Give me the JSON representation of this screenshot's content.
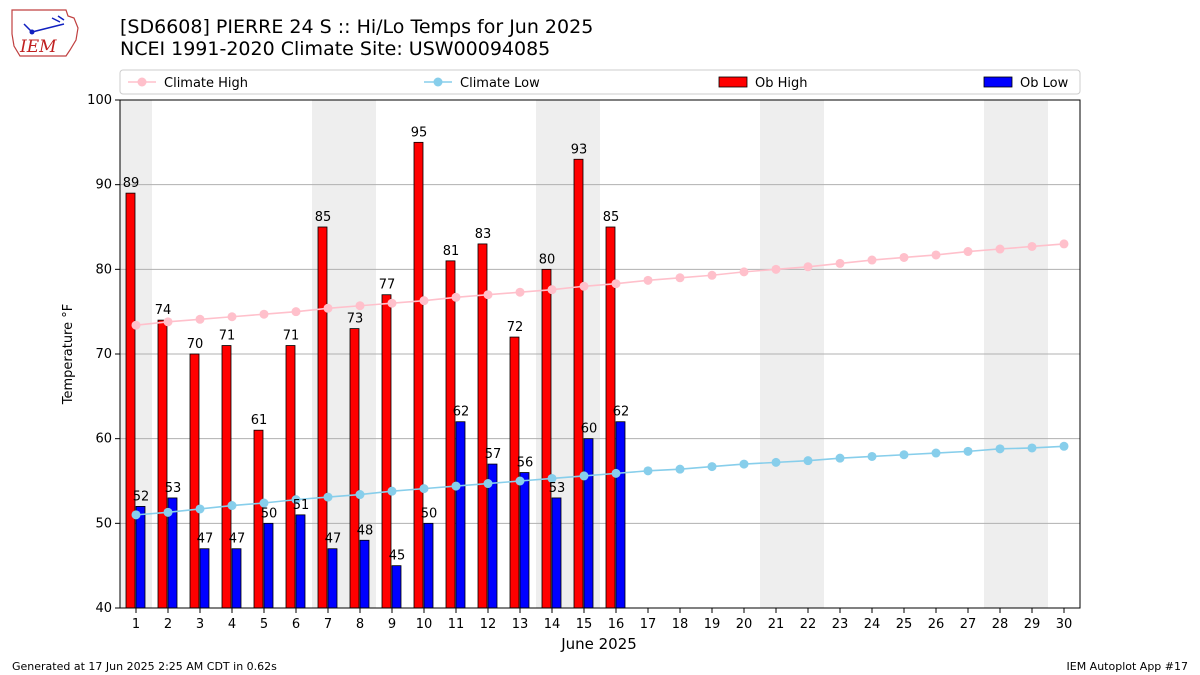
{
  "header": {
    "title_line1": "[SD6608] PIERRE 24 S :: Hi/Lo Temps for Jun 2025",
    "title_line2": "NCEI 1991-2020 Climate Site: USW00094085",
    "logo_text": "IEM"
  },
  "footer": {
    "left": "Generated at 17 Jun 2025 2:25 AM CDT in 0.62s",
    "right": "IEM Autoplot App #17"
  },
  "colors": {
    "ob_high": "#ff0000",
    "ob_low": "#0000ff",
    "climate_high": "#ffc0cb",
    "climate_low": "#87ceeb",
    "weekend_shade": "#eeeeee",
    "grid": "#b0b0b0"
  },
  "chart_data": {
    "type": "bar",
    "xlabel": "June 2025",
    "ylabel": "Temperature °F",
    "ylim": [
      40,
      100
    ],
    "yticks": [
      40,
      50,
      60,
      70,
      80,
      90,
      100
    ],
    "grid": "horizontal",
    "legend_position": "top",
    "legend": [
      "Climate High",
      "Climate Low",
      "Ob High",
      "Ob Low"
    ],
    "days": [
      1,
      2,
      3,
      4,
      5,
      6,
      7,
      8,
      9,
      10,
      11,
      12,
      13,
      14,
      15,
      16,
      17,
      18,
      19,
      20,
      21,
      22,
      23,
      24,
      25,
      26,
      27,
      28,
      29,
      30
    ],
    "shaded_days": [
      [
        1,
        1
      ],
      [
        7,
        8
      ],
      [
        14,
        15
      ],
      [
        21,
        22
      ],
      [
        28,
        29
      ]
    ],
    "series": [
      {
        "name": "Ob High",
        "kind": "bar",
        "values": [
          89,
          74,
          70,
          71,
          61,
          71,
          85,
          73,
          77,
          95,
          81,
          83,
          72,
          80,
          93,
          85
        ]
      },
      {
        "name": "Ob Low",
        "kind": "bar",
        "values": [
          52,
          53,
          47,
          47,
          50,
          51,
          47,
          48,
          45,
          50,
          62,
          57,
          56,
          53,
          60,
          62
        ]
      },
      {
        "name": "Climate High",
        "kind": "line",
        "values": [
          73.4,
          73.8,
          74.1,
          74.4,
          74.7,
          75.0,
          75.4,
          75.7,
          76.0,
          76.3,
          76.7,
          77.0,
          77.3,
          77.6,
          78.0,
          78.3,
          78.7,
          79.0,
          79.3,
          79.7,
          80.0,
          80.3,
          80.7,
          81.1,
          81.4,
          81.7,
          82.1,
          82.4,
          82.7,
          83.0
        ]
      },
      {
        "name": "Climate Low",
        "kind": "line",
        "values": [
          51.0,
          51.3,
          51.7,
          52.1,
          52.4,
          52.8,
          53.1,
          53.4,
          53.8,
          54.1,
          54.4,
          54.7,
          55.0,
          55.3,
          55.6,
          55.9,
          56.2,
          56.4,
          56.7,
          57.0,
          57.2,
          57.4,
          57.7,
          57.9,
          58.1,
          58.3,
          58.5,
          58.8,
          58.9,
          59.1
        ]
      }
    ]
  }
}
